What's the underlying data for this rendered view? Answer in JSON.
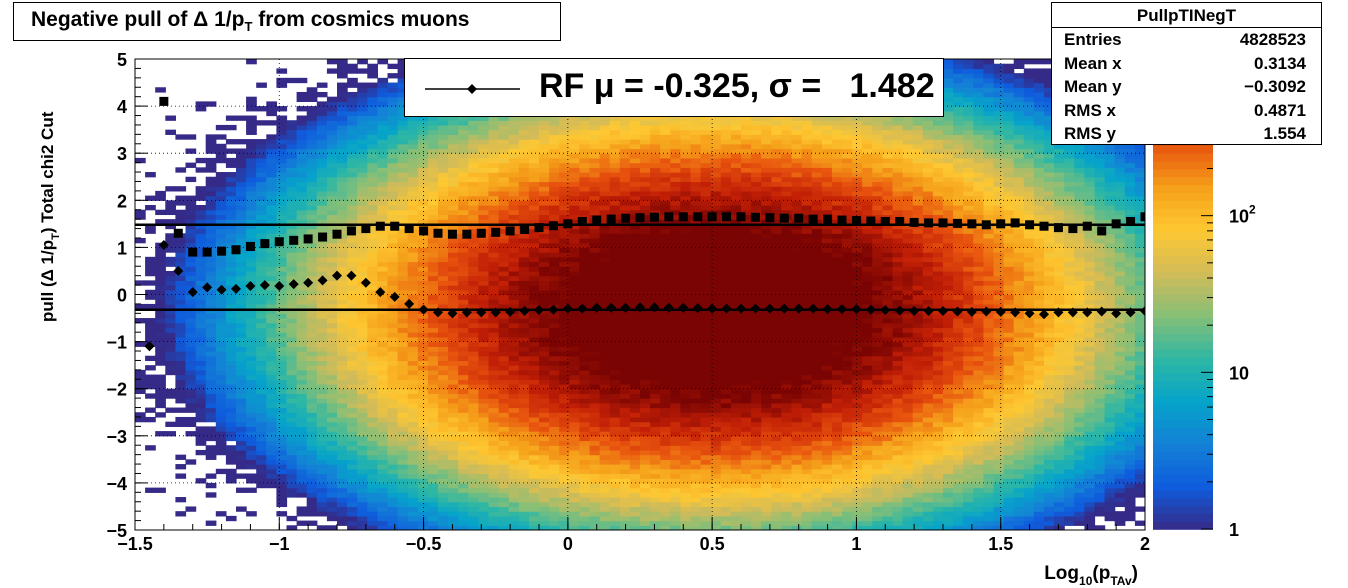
{
  "title": {
    "main": "Negative pull of Δ 1/p",
    "sub": "T",
    "rest": " from cosmics muons"
  },
  "stats": {
    "name": "PullpTINegT",
    "rows": [
      {
        "key": "Entries",
        "value": "4828523"
      },
      {
        "key": "Mean x",
        "value": "0.3134"
      },
      {
        "key": "Mean y",
        "value": "−0.3092"
      },
      {
        "key": "RMS x",
        "value": "0.4871"
      },
      {
        "key": "RMS y",
        "value": "1.554"
      }
    ]
  },
  "legend": {
    "text": "RF μ = -0.325, σ =   1.482"
  },
  "colors": {
    "marker": "#000000",
    "palette": [
      "#352a87",
      "#0f5cdd",
      "#1481d6",
      "#06a4ca",
      "#2eb7a4",
      "#87bf77",
      "#d1bb59",
      "#fec832",
      "#f5a01a",
      "#e8540e",
      "#c21f06",
      "#7a0403"
    ]
  },
  "chart_data": {
    "type": "heatmap",
    "xlabel": "Log",
    "xlabel_sub": "10",
    "xlabel_mid": "(p",
    "xlabel_sub2": "TAv",
    "xlabel_end": ")",
    "ylabel": "pull (Δ 1/p",
    "ylabel_sub": "T",
    "ylabel_end": ")  Total chi2 Cut",
    "xlim": [
      -1.5,
      2
    ],
    "ylim": [
      -5,
      5
    ],
    "x_ticks": [
      {
        "v": -1.5,
        "label": "−1.5"
      },
      {
        "v": -1,
        "label": "−1"
      },
      {
        "v": -0.5,
        "label": "−0.5"
      },
      {
        "v": 0,
        "label": "0"
      },
      {
        "v": 0.5,
        "label": "0.5"
      },
      {
        "v": 1,
        "label": "1"
      },
      {
        "v": 1.5,
        "label": "1.5"
      },
      {
        "v": 2,
        "label": "2"
      }
    ],
    "y_ticks": [
      {
        "v": 5,
        "label": "5"
      },
      {
        "v": 4,
        "label": "4"
      },
      {
        "v": 3,
        "label": "3"
      },
      {
        "v": 2,
        "label": "2"
      },
      {
        "v": 1,
        "label": "1"
      },
      {
        "v": 0,
        "label": "0"
      },
      {
        "v": -1,
        "label": "−1"
      },
      {
        "v": -2,
        "label": "−2"
      },
      {
        "v": -3,
        "label": "−3"
      },
      {
        "v": -4,
        "label": "−4"
      },
      {
        "v": -5,
        "label": "−5"
      }
    ],
    "grid": true,
    "z_scale": "log",
    "z_range": [
      1,
      1000
    ],
    "z_ticks": [
      {
        "v": 1,
        "label": "1"
      },
      {
        "v": 10,
        "label": "10"
      },
      {
        "v": 100,
        "label": "10",
        "exp": "2"
      }
    ],
    "density": {
      "center_x": 0.5,
      "center_y": -0.3,
      "sigma_x": 0.49,
      "sigma_y": 1.55,
      "peak": 2000
    },
    "series": [
      {
        "name": "mean",
        "marker": "diamond",
        "x": [
          -1.45,
          -1.4,
          -1.35,
          -1.3,
          -1.25,
          -1.2,
          -1.15,
          -1.1,
          -1.05,
          -1.0,
          -0.95,
          -0.9,
          -0.85,
          -0.8,
          -0.75,
          -0.7,
          -0.65,
          -0.6,
          -0.55,
          -0.5,
          -0.45,
          -0.4,
          -0.35,
          -0.3,
          -0.25,
          -0.2,
          -0.15,
          -0.1,
          -0.05,
          0.0,
          0.05,
          0.1,
          0.15,
          0.2,
          0.25,
          0.3,
          0.35,
          0.4,
          0.45,
          0.5,
          0.55,
          0.6,
          0.65,
          0.7,
          0.75,
          0.8,
          0.85,
          0.9,
          0.95,
          1.0,
          1.05,
          1.1,
          1.15,
          1.2,
          1.25,
          1.3,
          1.35,
          1.4,
          1.45,
          1.5,
          1.55,
          1.6,
          1.65,
          1.7,
          1.75,
          1.8,
          1.85,
          1.9,
          1.95,
          2.0
        ],
        "y": [
          -1.1,
          1.05,
          0.5,
          0.05,
          0.15,
          0.1,
          0.12,
          0.18,
          0.2,
          0.18,
          0.22,
          0.25,
          0.3,
          0.4,
          0.4,
          0.25,
          0.05,
          -0.05,
          -0.2,
          -0.32,
          -0.38,
          -0.4,
          -0.38,
          -0.38,
          -0.38,
          -0.37,
          -0.35,
          -0.33,
          -0.32,
          -0.3,
          -0.3,
          -0.28,
          -0.28,
          -0.28,
          -0.27,
          -0.27,
          -0.28,
          -0.28,
          -0.29,
          -0.3,
          -0.3,
          -0.3,
          -0.3,
          -0.3,
          -0.3,
          -0.3,
          -0.3,
          -0.31,
          -0.31,
          -0.31,
          -0.32,
          -0.33,
          -0.34,
          -0.35,
          -0.35,
          -0.35,
          -0.36,
          -0.37,
          -0.36,
          -0.37,
          -0.38,
          -0.4,
          -0.42,
          -0.38,
          -0.38,
          -0.38,
          -0.36,
          -0.4,
          -0.38,
          -0.35
        ]
      },
      {
        "name": "rms",
        "marker": "square",
        "x": [
          -1.4,
          -1.35,
          -1.3,
          -1.25,
          -1.2,
          -1.15,
          -1.1,
          -1.05,
          -1.0,
          -0.95,
          -0.9,
          -0.85,
          -0.8,
          -0.75,
          -0.7,
          -0.65,
          -0.6,
          -0.55,
          -0.5,
          -0.45,
          -0.4,
          -0.35,
          -0.3,
          -0.25,
          -0.2,
          -0.15,
          -0.1,
          -0.05,
          0.0,
          0.05,
          0.1,
          0.15,
          0.2,
          0.25,
          0.3,
          0.35,
          0.4,
          0.45,
          0.5,
          0.55,
          0.6,
          0.65,
          0.7,
          0.75,
          0.8,
          0.85,
          0.9,
          0.95,
          1.0,
          1.05,
          1.1,
          1.15,
          1.2,
          1.25,
          1.3,
          1.35,
          1.4,
          1.45,
          1.5,
          1.55,
          1.6,
          1.65,
          1.7,
          1.75,
          1.8,
          1.85,
          1.9,
          1.95,
          2.0
        ],
        "y": [
          4.1,
          1.3,
          0.9,
          0.9,
          0.92,
          0.95,
          1.02,
          1.08,
          1.12,
          1.15,
          1.18,
          1.22,
          1.28,
          1.35,
          1.4,
          1.45,
          1.45,
          1.4,
          1.35,
          1.3,
          1.28,
          1.28,
          1.3,
          1.32,
          1.35,
          1.38,
          1.42,
          1.46,
          1.5,
          1.55,
          1.58,
          1.6,
          1.62,
          1.63,
          1.64,
          1.65,
          1.65,
          1.65,
          1.65,
          1.65,
          1.65,
          1.64,
          1.63,
          1.62,
          1.62,
          1.6,
          1.6,
          1.58,
          1.57,
          1.56,
          1.55,
          1.55,
          1.53,
          1.52,
          1.52,
          1.51,
          1.5,
          1.48,
          1.5,
          1.52,
          1.48,
          1.45,
          1.42,
          1.4,
          1.45,
          1.35,
          1.5,
          1.55,
          1.65
        ]
      }
    ],
    "fit_lines": [
      {
        "name": "sigma",
        "y": 1.482
      },
      {
        "name": "mu",
        "y": -0.325
      }
    ]
  }
}
